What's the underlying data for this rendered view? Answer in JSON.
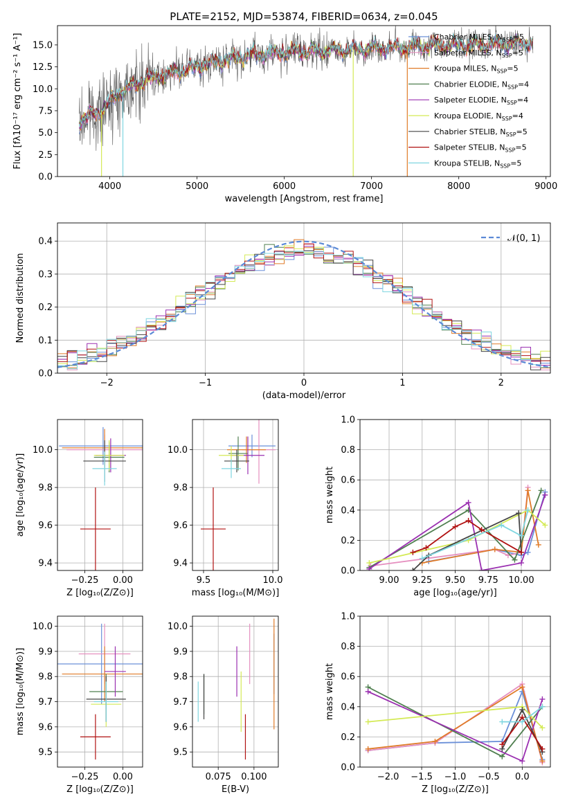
{
  "colors": {
    "Chabrier MILES": "#6a8fd8",
    "Salpeter MILES": "#e58fbf",
    "Kroupa MILES": "#e07b28",
    "Chabrier ELODIE": "#4f7f4f",
    "Salpeter ELODIE": "#9a2fb0",
    "Kroupa ELODIE": "#d4ea55",
    "Chabrier STELIB": "#444444",
    "Salpeter STELIB": "#b01010",
    "Kroupa STELIB": "#7fd6e0",
    "gauss": "#5b8ad6"
  },
  "chart_data": [
    {
      "id": "spectrum",
      "type": "line",
      "title": "PLATE=2152, MJD=53874, FIBERID=0634, z=0.045",
      "xlabel": "wavelength [Angstrom, rest frame]",
      "ylabel": "Flux [fλ10⁻¹⁷ erg cm⁻² s⁻¹ A⁻¹]",
      "xlim": [
        3400,
        9050
      ],
      "ylim": [
        0,
        17.2
      ],
      "xticks": [
        4000,
        5000,
        6000,
        7000,
        8000,
        9000
      ],
      "yticks": [
        0.0,
        2.5,
        5.0,
        7.5,
        10.0,
        12.5,
        15.0
      ],
      "grid": false,
      "legend_position": "top-right",
      "data_x_range": [
        3650,
        8850
      ],
      "continuum": [
        [
          3650,
          6.3
        ],
        [
          3900,
          7.5
        ],
        [
          4100,
          9.5
        ],
        [
          4400,
          11.0
        ],
        [
          4800,
          12.0
        ],
        [
          5200,
          13.0
        ],
        [
          5600,
          13.8
        ],
        [
          6000,
          14.2
        ],
        [
          6500,
          14.3
        ],
        [
          7000,
          14.6
        ],
        [
          7500,
          14.8
        ],
        [
          8000,
          15.0
        ],
        [
          8500,
          15.1
        ],
        [
          8850,
          15.2
        ]
      ],
      "legend": [
        {
          "model": "Chabrier MILES",
          "label": "Chabrier MILES, N",
          "sub": "SSP",
          "tail": "=5"
        },
        {
          "model": "Salpeter MILES",
          "label": "Salpeter MILES, N",
          "sub": "SSP",
          "tail": "=5"
        },
        {
          "model": "Kroupa MILES",
          "label": "Kroupa MILES, N",
          "sub": "SSP",
          "tail": "=5"
        },
        {
          "model": "Chabrier ELODIE",
          "label": "Chabrier ELODIE, N",
          "sub": "SSP",
          "tail": "=4"
        },
        {
          "model": "Salpeter ELODIE",
          "label": "Salpeter ELODIE, N",
          "sub": "SSP",
          "tail": "=4"
        },
        {
          "model": "Kroupa ELODIE",
          "label": "Kroupa ELODIE, N",
          "sub": "SSP",
          "tail": "=4"
        },
        {
          "model": "Chabrier STELIB",
          "label": "Chabrier STELIB, N",
          "sub": "SSP",
          "tail": "=5"
        },
        {
          "model": "Salpeter STELIB",
          "label": "Salpeter STELIB, N",
          "sub": "SSP",
          "tail": "=5"
        },
        {
          "model": "Kroupa STELIB",
          "label": "Kroupa STELIB, N",
          "sub": "SSP",
          "tail": "=5"
        }
      ]
    },
    {
      "id": "residuals",
      "type": "histogram",
      "xlabel": "(data-model)/error",
      "ylabel": "Normed distribution",
      "xlim": [
        -2.5,
        2.5
      ],
      "ylim": [
        0,
        0.455
      ],
      "xticks": [
        -2,
        -1,
        0,
        1,
        2
      ],
      "yticks": [
        0.0,
        0.1,
        0.2,
        0.3,
        0.4
      ],
      "grid": true,
      "legend_position": "top-right",
      "legend": [
        {
          "label": "𝒩(0, 1)"
        }
      ],
      "bin_width": 0.1
    },
    {
      "id": "age_vs_Z",
      "type": "errorbar",
      "xlabel": "Z [log₁₀(Z/Z⊙)]",
      "ylabel": "age  [log₁₀(age/yr)]",
      "xlim": [
        -0.43,
        0.13
      ],
      "ylim": [
        9.36,
        10.16
      ],
      "xticks": [
        -0.25,
        0.0
      ],
      "yticks": [
        9.4,
        9.6,
        9.8,
        10.0
      ],
      "grid": true,
      "points": [
        {
          "model": "Chabrier MILES",
          "x": -0.13,
          "xerr": 0.29,
          "y": 10.02,
          "yerr": 0.1
        },
        {
          "model": "Salpeter MILES",
          "x": -0.12,
          "xerr": 0.25,
          "y": 10.0,
          "yerr": 0.08
        },
        {
          "model": "Kroupa MILES",
          "x": -0.12,
          "xerr": 0.28,
          "y": 10.01,
          "yerr": 0.1
        },
        {
          "model": "Chabrier ELODIE",
          "x": -0.09,
          "xerr": 0.1,
          "y": 9.96,
          "yerr": 0.08
        },
        {
          "model": "Salpeter ELODIE",
          "x": -0.08,
          "xerr": 0.1,
          "y": 9.97,
          "yerr": 0.09
        },
        {
          "model": "Kroupa ELODIE",
          "x": -0.09,
          "xerr": 0.1,
          "y": 9.97,
          "yerr": 0.08
        },
        {
          "model": "Chabrier STELIB",
          "x": -0.12,
          "xerr": 0.14,
          "y": 9.94,
          "yerr": 0.11
        },
        {
          "model": "Salpeter STELIB",
          "x": -0.18,
          "xerr": 0.1,
          "y": 9.58,
          "yerr": 0.22
        },
        {
          "model": "Kroupa STELIB",
          "x": -0.12,
          "xerr": 0.08,
          "y": 9.9,
          "yerr": 0.09
        }
      ]
    },
    {
      "id": "age_vs_mass",
      "type": "errorbar",
      "xlabel": "mass [log₁₀(M/M⊙)]",
      "ylabel": "",
      "xlim": [
        9.42,
        10.04
      ],
      "ylim": [
        9.36,
        10.16
      ],
      "xticks": [
        9.5,
        10.0
      ],
      "yticks": [
        9.4,
        9.6,
        9.8,
        10.0
      ],
      "grid": true,
      "points": [
        {
          "model": "Chabrier MILES",
          "x": 9.85,
          "xerr": 0.17,
          "y": 10.02,
          "yerr": 0.06
        },
        {
          "model": "Salpeter MILES",
          "x": 9.9,
          "xerr": 0.12,
          "y": 10.0,
          "yerr": 0.18
        },
        {
          "model": "Kroupa MILES",
          "x": 9.81,
          "xerr": 0.14,
          "y": 10.0,
          "yerr": 0.07
        },
        {
          "model": "Chabrier ELODIE",
          "x": 9.75,
          "xerr": 0.07,
          "y": 9.98,
          "yerr": 0.09
        },
        {
          "model": "Salpeter ELODIE",
          "x": 9.82,
          "xerr": 0.12,
          "y": 9.97,
          "yerr": 0.1
        },
        {
          "model": "Kroupa ELODIE",
          "x": 9.7,
          "xerr": 0.09,
          "y": 9.97,
          "yerr": 0.05
        },
        {
          "model": "Chabrier STELIB",
          "x": 9.74,
          "xerr": 0.09,
          "y": 9.94,
          "yerr": 0.06
        },
        {
          "model": "Salpeter STELIB",
          "x": 9.57,
          "xerr": 0.09,
          "y": 9.58,
          "yerr": 0.22
        },
        {
          "model": "Kroupa STELIB",
          "x": 9.7,
          "xerr": 0.07,
          "y": 9.9,
          "yerr": 0.05
        }
      ]
    },
    {
      "id": "weight_vs_age",
      "type": "line",
      "xlabel": "age  [log₁₀(age/yr)]",
      "ylabel": "mass weight",
      "xlim": [
        8.78,
        10.22
      ],
      "ylim": [
        0,
        1.0
      ],
      "xticks": [
        9.0,
        9.25,
        9.5,
        9.75,
        10.0
      ],
      "yticks": [
        0.0,
        0.2,
        0.4,
        0.6,
        0.8,
        1.0
      ],
      "grid": true,
      "series": [
        {
          "model": "Chabrier MILES",
          "x": [
            9.3,
            9.8,
            10.0,
            10.05,
            10.18
          ],
          "y": [
            0.06,
            0.14,
            0.1,
            0.12,
            0.52
          ]
        },
        {
          "model": "Salpeter MILES",
          "x": [
            8.86,
            9.8,
            9.9,
            10.0,
            10.05
          ],
          "y": [
            0.03,
            0.14,
            0.1,
            0.12,
            0.55
          ]
        },
        {
          "model": "Kroupa MILES",
          "x": [
            9.25,
            9.8,
            10.0,
            10.05,
            10.13
          ],
          "y": [
            0.05,
            0.14,
            0.12,
            0.53,
            0.17
          ]
        },
        {
          "model": "Chabrier ELODIE",
          "x": [
            8.85,
            9.6,
            9.95,
            10.15
          ],
          "y": [
            0.02,
            0.4,
            0.07,
            0.53
          ]
        },
        {
          "model": "Salpeter ELODIE",
          "x": [
            8.85,
            9.6,
            9.7,
            10.0,
            10.18
          ],
          "y": [
            0.01,
            0.45,
            0.0,
            0.05,
            0.5
          ]
        },
        {
          "model": "Kroupa ELODIE",
          "x": [
            8.85,
            9.6,
            10.05,
            10.18
          ],
          "y": [
            0.05,
            0.2,
            0.4,
            0.3
          ]
        },
        {
          "model": "Chabrier STELIB",
          "x": [
            9.18,
            9.3,
            9.98,
            10.0
          ],
          "y": [
            0.0,
            0.1,
            0.38,
            0.12
          ]
        },
        {
          "model": "Salpeter STELIB",
          "x": [
            9.18,
            9.28,
            9.5,
            9.6,
            9.7,
            10.0
          ],
          "y": [
            0.12,
            0.15,
            0.29,
            0.33,
            0.27,
            0.12
          ]
        },
        {
          "model": "Kroupa STELIB",
          "x": [
            9.25,
            9.85,
            10.0,
            10.05
          ],
          "y": [
            0.08,
            0.3,
            0.23,
            0.4
          ]
        }
      ]
    },
    {
      "id": "mass_vs_Z",
      "type": "errorbar",
      "xlabel": "Z [log₁₀(Z/Z⊙)]",
      "ylabel": "mass [log₁₀(M/M⊙)]",
      "xlim": [
        -0.43,
        0.13
      ],
      "ylim": [
        9.44,
        10.04
      ],
      "xticks": [
        -0.25,
        0.0
      ],
      "yticks": [
        9.5,
        9.6,
        9.7,
        9.8,
        9.9,
        10.0
      ],
      "grid": true,
      "points": [
        {
          "model": "Chabrier MILES",
          "x": -0.14,
          "xerr": 0.29,
          "y": 9.85,
          "yerr": 0.16
        },
        {
          "model": "Salpeter MILES",
          "x": -0.12,
          "xerr": 0.17,
          "y": 9.89,
          "yerr": 0.12
        },
        {
          "model": "Kroupa MILES",
          "x": -0.12,
          "xerr": 0.28,
          "y": 9.81,
          "yerr": 0.11
        },
        {
          "model": "Chabrier ELODIE",
          "x": -0.11,
          "xerr": 0.11,
          "y": 9.74,
          "yerr": 0.07
        },
        {
          "model": "Salpeter ELODIE",
          "x": -0.05,
          "xerr": 0.07,
          "y": 9.82,
          "yerr": 0.1
        },
        {
          "model": "Kroupa ELODIE",
          "x": -0.11,
          "xerr": 0.1,
          "y": 9.69,
          "yerr": 0.09
        },
        {
          "model": "Chabrier STELIB",
          "x": -0.11,
          "xerr": 0.13,
          "y": 9.71,
          "yerr": 0.09
        },
        {
          "model": "Salpeter STELIB",
          "x": -0.18,
          "xerr": 0.1,
          "y": 9.56,
          "yerr": 0.09
        },
        {
          "model": "Kroupa STELIB",
          "x": -0.11,
          "xerr": 0.08,
          "y": 9.7,
          "yerr": 0.08
        }
      ]
    },
    {
      "id": "mass_vs_ebv",
      "type": "errorbar",
      "xlabel": "E(B-V)",
      "ylabel": "",
      "xlim": [
        0.057,
        0.117
      ],
      "ylim": [
        9.44,
        10.04
      ],
      "xticks": [
        0.075,
        0.1
      ],
      "yticks": [
        9.5,
        9.6,
        9.7,
        9.8,
        9.9,
        10.0
      ],
      "grid": true,
      "points": [
        {
          "model": "Chabrier MILES",
          "x": 0.114,
          "y": 9.85,
          "yerr": 0.12
        },
        {
          "model": "Salpeter MILES",
          "x": 0.097,
          "y": 9.89,
          "yerr": 0.12
        },
        {
          "model": "Kroupa MILES",
          "x": 0.114,
          "y": 9.81,
          "yerr": 0.22
        },
        {
          "model": "Chabrier ELODIE",
          "x": 0.065,
          "y": 9.73,
          "yerr": 0.08
        },
        {
          "model": "Salpeter ELODIE",
          "x": 0.088,
          "y": 9.82,
          "yerr": 0.1
        },
        {
          "model": "Kroupa ELODIE",
          "x": 0.091,
          "y": 9.7,
          "yerr": 0.12
        },
        {
          "model": "Chabrier STELIB",
          "x": 0.065,
          "y": 9.72,
          "yerr": 0.09
        },
        {
          "model": "Salpeter STELIB",
          "x": 0.094,
          "y": 9.56,
          "yerr": 0.09
        },
        {
          "model": "Kroupa STELIB",
          "x": 0.061,
          "y": 9.7,
          "yerr": 0.08
        }
      ]
    },
    {
      "id": "weight_vs_Z",
      "type": "line",
      "xlabel": "Z [log₁₀(Z/Z⊙)]",
      "ylabel": "mass weight",
      "xlim": [
        -2.42,
        0.42
      ],
      "ylim": [
        0,
        1.0
      ],
      "xticks": [
        -2.0,
        -1.5,
        -1.0,
        -0.5,
        0.0
      ],
      "yticks": [
        0.0,
        0.2,
        0.4,
        0.6,
        0.8,
        1.0
      ],
      "grid": true,
      "series": [
        {
          "model": "Chabrier MILES",
          "x": [
            -2.3,
            -1.3,
            -0.3,
            0.0,
            0.3
          ],
          "y": [
            0.11,
            0.16,
            0.17,
            0.5,
            0.05
          ]
        },
        {
          "model": "Salpeter MILES",
          "x": [
            -2.3,
            -1.3,
            0.0,
            0.3
          ],
          "y": [
            0.11,
            0.16,
            0.55,
            0.03
          ]
        },
        {
          "model": "Kroupa MILES",
          "x": [
            -2.3,
            -1.3,
            0.0,
            0.3
          ],
          "y": [
            0.12,
            0.17,
            0.53,
            0.04
          ]
        },
        {
          "model": "Chabrier ELODIE",
          "x": [
            -2.3,
            -0.3,
            0.3
          ],
          "y": [
            0.53,
            0.07,
            0.4
          ]
        },
        {
          "model": "Salpeter ELODIE",
          "x": [
            -2.3,
            0.0,
            0.3
          ],
          "y": [
            0.5,
            0.04,
            0.45
          ]
        },
        {
          "model": "Kroupa ELODIE",
          "x": [
            -2.3,
            0.0,
            0.3
          ],
          "y": [
            0.3,
            0.4,
            0.26
          ]
        },
        {
          "model": "Chabrier STELIB",
          "x": [
            -0.3,
            0.0,
            0.3
          ],
          "y": [
            0.12,
            0.38,
            0.1
          ]
        },
        {
          "model": "Salpeter STELIB",
          "x": [
            -0.3,
            0.0,
            0.3
          ],
          "y": [
            0.15,
            0.33,
            0.12
          ]
        },
        {
          "model": "Kroupa STELIB",
          "x": [
            -0.3,
            0.0,
            0.3
          ],
          "y": [
            0.3,
            0.3,
            0.4
          ]
        }
      ]
    }
  ]
}
